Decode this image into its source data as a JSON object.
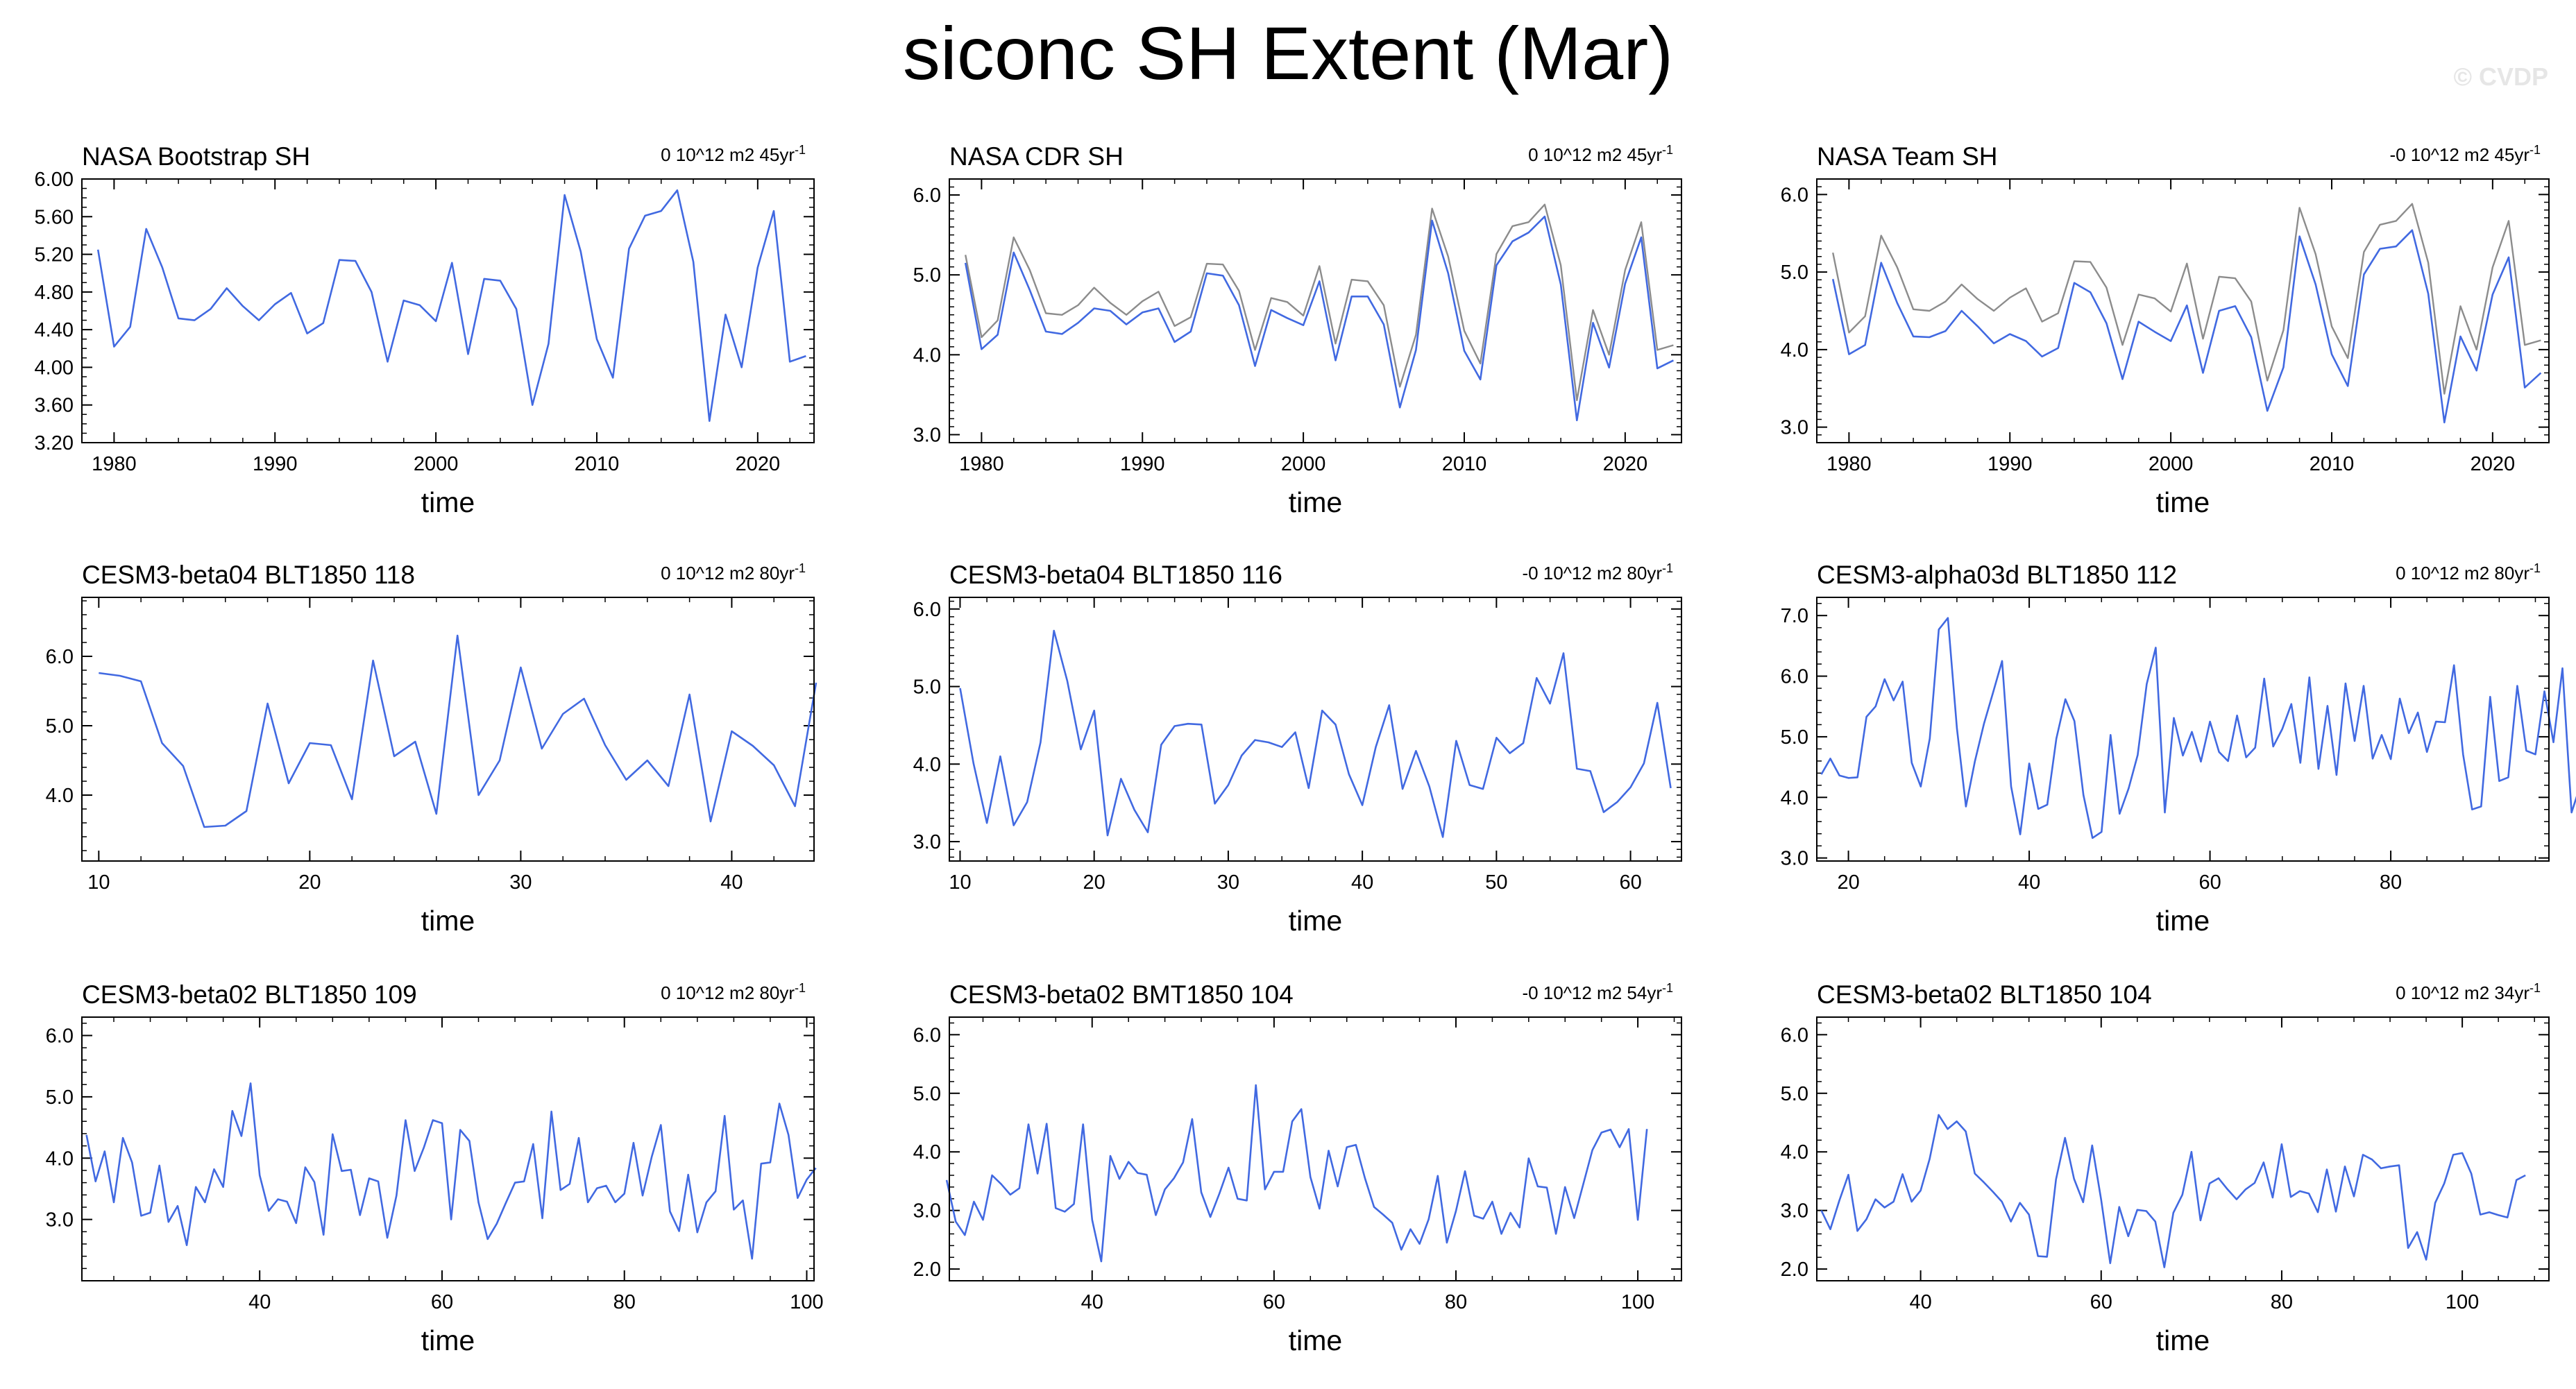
{
  "figure": {
    "title": "siconc SH Extent (Mar)",
    "watermark": "© CVDP"
  },
  "colors": {
    "series": "#4169e1",
    "reference": "#8c8c8c",
    "frame": "#000000"
  },
  "chart_data": [
    {
      "type": "line",
      "title": "NASA Bootstrap SH",
      "trend_prefix": "0 10^12 m2 45yr",
      "trend_sup": "-1",
      "xlabel": "time",
      "ylabel": "",
      "xlim": [
        1978,
        2023.5
      ],
      "ylim": [
        3.2,
        6.0
      ],
      "xticks": [
        1980,
        1990,
        2000,
        2010,
        2020
      ],
      "yticks": [
        "3.20",
        "3.60",
        "4.00",
        "4.40",
        "4.80",
        "5.20",
        "5.60",
        "6.00"
      ],
      "x_start": 1979,
      "series": [
        {
          "name": "NASA Bootstrap SH",
          "role": "series",
          "values": [
            5.25,
            4.22,
            4.43,
            5.47,
            5.06,
            4.52,
            4.5,
            4.62,
            4.84,
            4.65,
            4.5,
            4.67,
            4.79,
            4.36,
            4.47,
            5.14,
            5.13,
            4.8,
            4.06,
            4.71,
            4.66,
            4.49,
            5.11,
            4.14,
            4.94,
            4.92,
            4.62,
            3.6,
            4.25,
            5.83,
            5.23,
            4.3,
            3.89,
            5.26,
            5.61,
            5.66,
            5.88,
            5.12,
            3.43,
            4.56,
            4.0,
            5.06,
            5.66,
            4.06,
            4.12
          ]
        }
      ]
    },
    {
      "type": "line",
      "title": "NASA CDR SH",
      "trend_prefix": "0 10^12 m2 45yr",
      "trend_sup": "-1",
      "xlabel": "time",
      "ylabel": "",
      "xlim": [
        1978,
        2023.5
      ],
      "ylim": [
        2.9,
        6.2
      ],
      "xticks": [
        1980,
        1990,
        2000,
        2010,
        2020
      ],
      "yticks": [
        "3.0",
        "4.0",
        "5.0",
        "6.0"
      ],
      "x_start": 1979,
      "series": [
        {
          "name": "NASA Bootstrap SH (reference)",
          "role": "reference",
          "values": [
            5.25,
            4.22,
            4.43,
            5.47,
            5.06,
            4.52,
            4.5,
            4.62,
            4.84,
            4.65,
            4.5,
            4.67,
            4.79,
            4.36,
            4.47,
            5.14,
            5.13,
            4.8,
            4.06,
            4.71,
            4.66,
            4.49,
            5.11,
            4.14,
            4.94,
            4.92,
            4.62,
            3.6,
            4.25,
            5.83,
            5.23,
            4.3,
            3.89,
            5.26,
            5.61,
            5.66,
            5.88,
            5.12,
            3.43,
            4.56,
            4.0,
            5.06,
            5.66,
            4.06,
            4.12
          ]
        },
        {
          "name": "NASA CDR SH",
          "role": "series",
          "values": [
            5.15,
            4.07,
            4.25,
            5.28,
            4.81,
            4.29,
            4.26,
            4.4,
            4.58,
            4.55,
            4.38,
            4.53,
            4.58,
            4.16,
            4.29,
            5.02,
            4.99,
            4.62,
            3.86,
            4.56,
            4.46,
            4.37,
            4.92,
            3.93,
            4.73,
            4.73,
            4.38,
            3.34,
            4.06,
            5.68,
            5.02,
            4.05,
            3.69,
            5.12,
            5.42,
            5.53,
            5.73,
            4.88,
            3.18,
            4.4,
            3.84,
            4.89,
            5.47,
            3.83,
            3.93
          ]
        }
      ]
    },
    {
      "type": "line",
      "title": "NASA Team SH",
      "trend_prefix": "-0 10^12 m2 45yr",
      "trend_sup": "-1",
      "xlabel": "time",
      "ylabel": "",
      "xlim": [
        1978,
        2023.5
      ],
      "ylim": [
        2.8,
        6.2
      ],
      "xticks": [
        1980,
        1990,
        2000,
        2010,
        2020
      ],
      "yticks": [
        "3.0",
        "4.0",
        "5.0",
        "6.0"
      ],
      "x_start": 1979,
      "series": [
        {
          "name": "NASA Bootstrap SH (reference)",
          "role": "reference",
          "values": [
            5.25,
            4.22,
            4.43,
            5.47,
            5.06,
            4.52,
            4.5,
            4.62,
            4.84,
            4.65,
            4.5,
            4.67,
            4.79,
            4.36,
            4.47,
            5.14,
            5.13,
            4.8,
            4.06,
            4.71,
            4.66,
            4.49,
            5.11,
            4.14,
            4.94,
            4.92,
            4.62,
            3.6,
            4.25,
            5.83,
            5.23,
            4.3,
            3.89,
            5.26,
            5.61,
            5.66,
            5.88,
            5.12,
            3.43,
            4.56,
            4.0,
            5.06,
            5.66,
            4.06,
            4.12
          ]
        },
        {
          "name": "NASA Team SH",
          "role": "series",
          "values": [
            4.91,
            3.94,
            4.06,
            5.12,
            4.6,
            4.17,
            4.16,
            4.24,
            4.5,
            4.3,
            4.08,
            4.2,
            4.11,
            3.91,
            4.02,
            4.86,
            4.74,
            4.34,
            3.62,
            4.36,
            4.23,
            4.11,
            4.57,
            3.7,
            4.5,
            4.56,
            4.16,
            3.21,
            3.77,
            5.46,
            4.84,
            3.94,
            3.53,
            4.97,
            5.3,
            5.33,
            5.54,
            4.72,
            3.06,
            4.17,
            3.73,
            4.71,
            5.19,
            3.51,
            3.7
          ]
        }
      ]
    },
    {
      "type": "line",
      "title": "CESM3-beta04 BLT1850 118",
      "trend_prefix": "0 10^12 m2 80yr",
      "trend_sup": "-1",
      "xlabel": "time",
      "ylabel": "",
      "xlim": [
        9.2,
        43.9
      ],
      "ylim": [
        3.05,
        6.85
      ],
      "xticks": [
        10,
        20,
        30,
        40
      ],
      "yticks": [
        "4.0",
        "5.0",
        "6.0"
      ],
      "x_start": 10,
      "series": [
        {
          "name": "CESM3-beta04 BLT1850 118",
          "role": "series",
          "values": [
            5.76,
            5.72,
            5.64,
            4.75,
            4.42,
            3.54,
            3.56,
            3.77,
            5.32,
            4.17,
            4.75,
            4.72,
            3.94,
            5.94,
            4.56,
            4.77,
            3.73,
            6.3,
            4.0,
            4.5,
            5.84,
            4.67,
            5.17,
            5.39,
            4.72,
            4.22,
            4.5,
            4.13,
            5.45,
            3.62,
            4.92,
            4.71,
            4.43,
            3.84,
            5.62
          ]
        }
      ]
    },
    {
      "type": "line",
      "title": "CESM3-beta04 BLT1850 116",
      "trend_prefix": "-0 10^12 m2 80yr",
      "trend_sup": "-1",
      "xlabel": "time",
      "ylabel": "",
      "xlim": [
        9.2,
        63.8
      ],
      "ylim": [
        2.75,
        6.15
      ],
      "xticks": [
        10,
        20,
        30,
        40,
        50,
        60
      ],
      "yticks": [
        "3.0",
        "4.0",
        "5.0",
        "6.0"
      ],
      "x_start": 10,
      "series": [
        {
          "name": "CESM3-beta04 BLT1850 116",
          "role": "series",
          "values": [
            4.98,
            4.01,
            3.24,
            4.1,
            3.21,
            3.51,
            4.28,
            5.72,
            5.07,
            4.19,
            4.69,
            3.08,
            3.81,
            3.41,
            3.12,
            4.25,
            4.49,
            4.52,
            4.51,
            3.49,
            3.73,
            4.11,
            4.31,
            4.28,
            4.22,
            4.41,
            3.69,
            4.69,
            4.51,
            3.87,
            3.47,
            4.22,
            4.76,
            3.68,
            4.17,
            3.71,
            3.06,
            4.3,
            3.73,
            3.68,
            4.34,
            4.14,
            4.27,
            5.11,
            4.78,
            5.43,
            3.94,
            3.91,
            3.38,
            3.51,
            3.7,
            4.01,
            4.79,
            3.69
          ]
        }
      ]
    },
    {
      "type": "line",
      "title": "CESM3-alpha03d BLT1850 112",
      "trend_prefix": "0 10^12 m2 80yr",
      "trend_sup": "-1",
      "xlabel": "time",
      "ylabel": "",
      "xlim": [
        16.5,
        97.5
      ],
      "ylim": [
        2.95,
        7.3
      ],
      "xticks": [
        20,
        40,
        60,
        80
      ],
      "yticks": [
        "3.0",
        "4.0",
        "5.0",
        "6.0",
        "7.0"
      ],
      "x_start": 17,
      "series": [
        {
          "name": "CESM3-alpha03d BLT1850 112",
          "role": "series",
          "values": [
            4.38,
            4.64,
            4.36,
            4.32,
            4.33,
            5.33,
            5.5,
            5.95,
            5.6,
            5.91,
            4.57,
            4.18,
            4.97,
            6.77,
            6.96,
            5.14,
            3.85,
            4.6,
            5.22,
            5.73,
            6.25,
            4.18,
            3.39,
            4.56,
            3.81,
            3.88,
            4.97,
            5.62,
            5.26,
            4.04,
            3.33,
            3.43,
            5.03,
            3.73,
            4.15,
            4.7,
            5.87,
            6.47,
            3.75,
            5.31,
            4.69,
            5.08,
            4.59,
            5.25,
            4.75,
            4.6,
            5.35,
            4.66,
            4.82,
            5.96,
            4.84,
            5.13,
            5.54,
            4.57,
            5.98,
            4.47,
            5.51,
            4.37,
            5.88,
            4.93,
            5.84,
            4.64,
            5.03,
            4.63,
            5.63,
            5.06,
            5.4,
            4.75,
            5.25,
            5.24,
            6.18,
            4.71,
            3.8,
            3.85,
            5.66,
            4.27,
            4.33,
            5.84,
            4.77,
            4.71,
            5.75,
            4.91,
            6.13,
            3.75,
            4.21,
            4.1
          ]
        }
      ]
    },
    {
      "type": "line",
      "title": "CESM3-beta02 BLT1850 109",
      "trend_prefix": "0 10^12 m2 80yr",
      "trend_sup": "-1",
      "xlabel": "time",
      "ylabel": "",
      "xlim": [
        20.5,
        100.8
      ],
      "ylim": [
        2.0,
        6.3
      ],
      "xticks": [
        40,
        60,
        80,
        100
      ],
      "yticks": [
        "3.0",
        "4.0",
        "5.0",
        "6.0"
      ],
      "x_start": 21,
      "series": [
        {
          "name": "CESM3-beta02 BLT1850 109",
          "role": "series",
          "values": [
            4.38,
            3.62,
            4.11,
            3.28,
            4.33,
            3.93,
            3.06,
            3.11,
            3.88,
            2.96,
            3.22,
            2.58,
            3.53,
            3.28,
            3.82,
            3.53,
            4.77,
            4.36,
            5.22,
            3.72,
            3.14,
            3.33,
            3.29,
            2.94,
            3.85,
            3.61,
            2.75,
            4.39,
            3.79,
            3.81,
            3.07,
            3.67,
            3.62,
            2.7,
            3.39,
            4.62,
            3.79,
            4.17,
            4.62,
            4.57,
            3.0,
            4.46,
            4.28,
            3.28,
            2.68,
            2.93,
            3.27,
            3.6,
            3.62,
            4.23,
            3.02,
            4.76,
            3.48,
            3.58,
            4.33,
            3.28,
            3.51,
            3.55,
            3.28,
            3.42,
            4.25,
            3.39,
            4.02,
            4.54,
            3.13,
            2.81,
            3.73,
            2.79,
            3.28,
            3.46,
            4.69,
            3.16,
            3.31,
            2.36,
            3.91,
            3.93,
            4.89,
            4.38,
            3.35,
            3.65,
            3.84
          ]
        }
      ]
    },
    {
      "type": "line",
      "title": "CESM3-beta02 BMT1850 104",
      "trend_prefix": "-0 10^12 m2 54yr",
      "trend_sup": "-1",
      "xlabel": "time",
      "ylabel": "",
      "xlim": [
        24.3,
        104.8
      ],
      "ylim": [
        1.8,
        6.3
      ],
      "xticks": [
        40,
        60,
        80,
        100
      ],
      "yticks": [
        "2.0",
        "3.0",
        "4.0",
        "5.0",
        "6.0"
      ],
      "x_start": 24,
      "series": [
        {
          "name": "CESM3-beta02 BMT1850 104",
          "role": "series",
          "values": [
            3.52,
            2.81,
            2.58,
            3.15,
            2.84,
            3.6,
            3.45,
            3.27,
            3.38,
            4.47,
            3.63,
            4.48,
            3.04,
            2.98,
            3.11,
            4.47,
            2.84,
            2.13,
            3.93,
            3.54,
            3.83,
            3.64,
            3.61,
            2.92,
            3.36,
            3.55,
            3.82,
            4.56,
            3.31,
            2.89,
            3.29,
            3.73,
            3.2,
            3.17,
            5.14,
            3.36,
            3.66,
            3.66,
            4.52,
            4.73,
            3.57,
            3.03,
            4.02,
            3.41,
            4.08,
            4.12,
            3.55,
            3.06,
            2.93,
            2.79,
            2.33,
            2.68,
            2.43,
            2.85,
            3.59,
            2.45,
            2.99,
            3.67,
            2.91,
            2.86,
            3.15,
            2.6,
            2.96,
            2.71,
            3.89,
            3.41,
            3.39,
            2.6,
            3.4,
            2.87,
            3.45,
            4.03,
            4.33,
            4.38,
            4.08,
            4.39,
            2.84,
            4.39
          ]
        }
      ]
    },
    {
      "type": "line",
      "title": "CESM3-beta02 BLT1850 104",
      "trend_prefix": "0 10^12 m2 34yr",
      "trend_sup": "-1",
      "xlabel": "time",
      "ylabel": "",
      "xlim": [
        28.5,
        109.6
      ],
      "ylim": [
        1.8,
        6.3
      ],
      "xticks": [
        40,
        60,
        80,
        100
      ],
      "yticks": [
        "2.0",
        "3.0",
        "4.0",
        "5.0",
        "6.0"
      ],
      "x_start": 29,
      "series": [
        {
          "name": "CESM3-beta02 BLT1850 104",
          "role": "series",
          "values": [
            3.0,
            2.68,
            3.17,
            3.61,
            2.65,
            2.85,
            3.19,
            3.05,
            3.15,
            3.62,
            3.15,
            3.34,
            3.88,
            4.63,
            4.39,
            4.52,
            4.35,
            3.63,
            3.48,
            3.32,
            3.15,
            2.81,
            3.13,
            2.93,
            2.22,
            2.21,
            3.53,
            4.24,
            3.54,
            3.14,
            4.11,
            3.18,
            2.1,
            3.06,
            2.56,
            3.01,
            2.99,
            2.81,
            2.03,
            2.96,
            3.27,
            4.0,
            2.83,
            3.46,
            3.55,
            3.36,
            3.19,
            3.36,
            3.47,
            3.82,
            3.22,
            4.13,
            3.23,
            3.33,
            3.29,
            2.97,
            3.7,
            2.98,
            3.75,
            3.24,
            3.95,
            3.87,
            3.72,
            3.75,
            3.77,
            2.36,
            2.63,
            2.16,
            3.13,
            3.46,
            3.95,
            3.98,
            3.63,
            2.93,
            2.97,
            2.92,
            2.88,
            3.52,
            3.6
          ]
        }
      ]
    }
  ]
}
